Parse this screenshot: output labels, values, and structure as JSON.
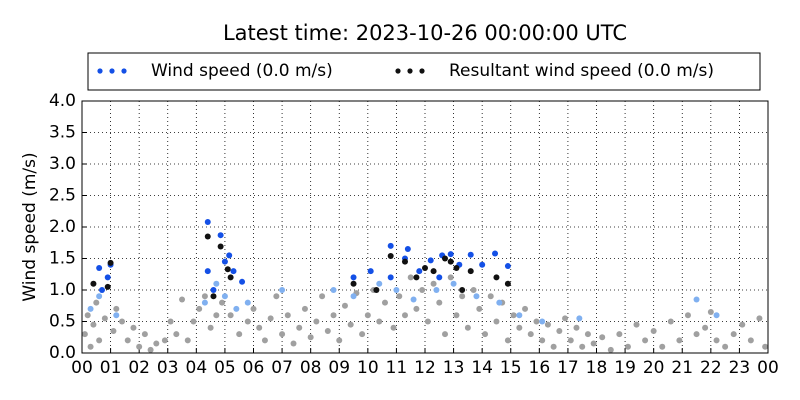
{
  "chart_data": {
    "type": "scatter",
    "title": "Latest time: 2023-10-26 00:00:00 UTC",
    "y_label": "Wind speed (m/s)",
    "xlim": [
      0,
      24
    ],
    "ylim": [
      0,
      4
    ],
    "xticks": [
      {
        "value": 0,
        "label": "00"
      },
      {
        "value": 1,
        "label": "01"
      },
      {
        "value": 2,
        "label": "02"
      },
      {
        "value": 3,
        "label": "03"
      },
      {
        "value": 4,
        "label": "04"
      },
      {
        "value": 5,
        "label": "05"
      },
      {
        "value": 6,
        "label": "06"
      },
      {
        "value": 7,
        "label": "07"
      },
      {
        "value": 8,
        "label": "08"
      },
      {
        "value": 9,
        "label": "09"
      },
      {
        "value": 10,
        "label": "10"
      },
      {
        "value": 11,
        "label": "11"
      },
      {
        "value": 12,
        "label": "12"
      },
      {
        "value": 13,
        "label": "13"
      },
      {
        "value": 14,
        "label": "14"
      },
      {
        "value": 15,
        "label": "15"
      },
      {
        "value": 16,
        "label": "16"
      },
      {
        "value": 17,
        "label": "17"
      },
      {
        "value": 18,
        "label": "18"
      },
      {
        "value": 19,
        "label": "19"
      },
      {
        "value": 20,
        "label": "20"
      },
      {
        "value": 21,
        "label": "21"
      },
      {
        "value": 22,
        "label": "22"
      },
      {
        "value": 23,
        "label": "23"
      },
      {
        "value": 24,
        "label": "00"
      }
    ],
    "yticks": [
      {
        "value": 0,
        "label": "0.0"
      },
      {
        "value": 0.5,
        "label": "0.5"
      },
      {
        "value": 1,
        "label": "1.0"
      },
      {
        "value": 1.5,
        "label": "1.5"
      },
      {
        "value": 2,
        "label": "2.0"
      },
      {
        "value": 2.5,
        "label": "2.5"
      },
      {
        "value": 3,
        "label": "3.0"
      },
      {
        "value": 3.5,
        "label": "3.5"
      },
      {
        "value": 4,
        "label": "4.0"
      }
    ],
    "grid": true,
    "series": [
      {
        "color": "#a0a0a0",
        "x": [
          0.1,
          0.2,
          0.3,
          0.4,
          0.5,
          0.6,
          0.8,
          1.1,
          1.2,
          1.4,
          1.6,
          1.8,
          2.0,
          2.2,
          2.4,
          2.6,
          2.9,
          3.1,
          3.3,
          3.5,
          3.7,
          3.9,
          4.1,
          4.3,
          4.5,
          4.7,
          4.9,
          5.2,
          5.5,
          5.8,
          6.0,
          6.2,
          6.4,
          6.6,
          6.8,
          7.0,
          7.2,
          7.4,
          7.6,
          7.8,
          8.0,
          8.2,
          8.4,
          8.6,
          8.8,
          9.0,
          9.2,
          9.4,
          9.6,
          9.8,
          10.0,
          10.2,
          10.4,
          10.6,
          10.9,
          11.1,
          11.3,
          11.5,
          11.7,
          11.9,
          12.1,
          12.3,
          12.5,
          12.7,
          12.9,
          13.1,
          13.3,
          13.5,
          13.7,
          13.9,
          14.1,
          14.3,
          14.5,
          14.7,
          14.9,
          15.1,
          15.3,
          15.5,
          15.7,
          15.9,
          16.1,
          16.3,
          16.5,
          16.7,
          16.9,
          17.1,
          17.3,
          17.5,
          17.7,
          17.9,
          18.2,
          18.5,
          18.8,
          19.1,
          19.4,
          19.7,
          20.0,
          20.3,
          20.6,
          20.9,
          21.2,
          21.5,
          21.8,
          22.0,
          22.2,
          22.5,
          22.8,
          23.1,
          23.4,
          23.7,
          23.9
        ],
        "values": [
          0.3,
          0.6,
          0.1,
          0.45,
          0.8,
          0.2,
          0.55,
          0.35,
          0.7,
          0.5,
          0.2,
          0.4,
          0.1,
          0.3,
          0.05,
          0.15,
          0.2,
          0.5,
          0.3,
          0.85,
          0.2,
          0.5,
          0.7,
          0.9,
          0.4,
          0.6,
          0.8,
          0.6,
          0.3,
          0.5,
          0.7,
          0.4,
          0.2,
          0.55,
          0.9,
          0.3,
          0.6,
          0.15,
          0.4,
          0.7,
          0.25,
          0.5,
          0.9,
          0.35,
          0.6,
          0.2,
          0.75,
          0.45,
          0.95,
          0.3,
          0.6,
          1.0,
          0.5,
          0.8,
          0.4,
          0.9,
          0.6,
          1.2,
          0.7,
          1.0,
          0.5,
          1.1,
          0.8,
          0.3,
          1.2,
          0.6,
          0.9,
          0.4,
          1.0,
          0.7,
          0.3,
          0.9,
          0.5,
          0.8,
          0.2,
          0.6,
          0.4,
          0.7,
          0.3,
          0.5,
          0.2,
          0.45,
          0.1,
          0.35,
          0.55,
          0.2,
          0.4,
          0.1,
          0.3,
          0.15,
          0.25,
          0.05,
          0.3,
          0.1,
          0.45,
          0.2,
          0.35,
          0.1,
          0.5,
          0.2,
          0.6,
          0.3,
          0.4,
          0.65,
          0.2,
          0.1,
          0.3,
          0.45,
          0.2,
          0.55,
          0.1
        ]
      },
      {
        "color": "#80b0f0",
        "x": [
          0.3,
          0.6,
          1.2,
          4.3,
          4.7,
          5.0,
          5.4,
          5.8,
          7.0,
          8.8,
          9.5,
          10.4,
          11.0,
          11.6,
          12.4,
          13.0,
          13.8,
          14.6,
          15.3,
          16.1,
          17.4,
          21.5,
          22.2
        ],
        "values": [
          0.7,
          0.9,
          0.6,
          0.8,
          1.1,
          0.9,
          0.7,
          0.8,
          1.0,
          1.0,
          0.9,
          1.1,
          1.0,
          0.85,
          1.0,
          1.1,
          0.9,
          0.8,
          0.6,
          0.5,
          0.55,
          0.85,
          0.6
        ]
      },
      {
        "name": "Wind speed (0.0 m/s)",
        "color": "#1450e6",
        "x": [
          0.6,
          0.9,
          1.0,
          0.7,
          4.4,
          4.85,
          4.4,
          5.15,
          5.0,
          5.3,
          5.6,
          4.6,
          9.5,
          10.1,
          10.8,
          11.4,
          11.3,
          12.2,
          12.6,
          12.9,
          13.2,
          13.6,
          14.0,
          14.45,
          14.9,
          10.8,
          11.8,
          12.5
        ],
        "values": [
          1.35,
          1.2,
          1.4,
          1.0,
          2.08,
          1.87,
          1.3,
          1.55,
          1.45,
          1.3,
          1.13,
          1.0,
          1.2,
          1.3,
          1.7,
          1.65,
          1.5,
          1.47,
          1.55,
          1.57,
          1.4,
          1.56,
          1.4,
          1.58,
          1.38,
          1.2,
          1.3,
          1.2
        ]
      },
      {
        "name": "Resultant wind speed (0.0 m/s)",
        "color": "#111111",
        "x": [
          0.4,
          1.0,
          0.9,
          4.4,
          4.85,
          5.1,
          5.2,
          4.6,
          9.5,
          10.8,
          11.3,
          12.0,
          12.3,
          12.7,
          12.9,
          13.1,
          13.6,
          14.5,
          14.9,
          10.3,
          11.7,
          13.3
        ],
        "values": [
          1.1,
          1.43,
          1.05,
          1.85,
          1.69,
          1.33,
          1.2,
          0.9,
          1.1,
          1.54,
          1.45,
          1.35,
          1.3,
          1.5,
          1.45,
          1.35,
          1.3,
          1.2,
          1.1,
          1.0,
          1.2,
          1.0
        ]
      }
    ]
  }
}
